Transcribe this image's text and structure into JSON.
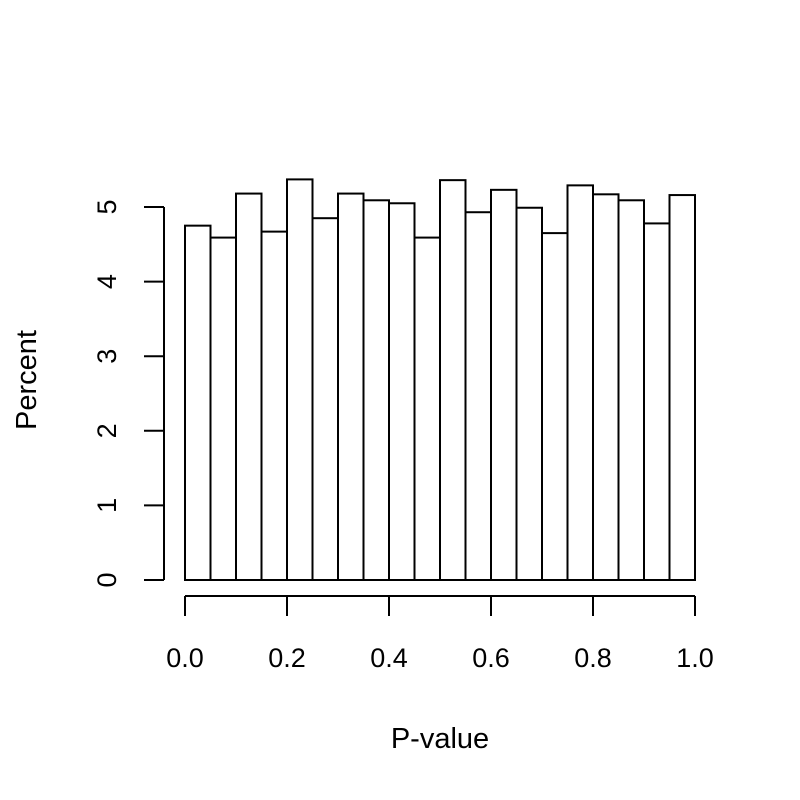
{
  "chart_data": {
    "type": "bar",
    "xlabel": "P-value",
    "ylabel": "Percent",
    "bins": [
      [
        0.0,
        0.05
      ],
      [
        0.05,
        0.1
      ],
      [
        0.1,
        0.15
      ],
      [
        0.15,
        0.2
      ],
      [
        0.2,
        0.25
      ],
      [
        0.25,
        0.3
      ],
      [
        0.3,
        0.35
      ],
      [
        0.35,
        0.4
      ],
      [
        0.4,
        0.45
      ],
      [
        0.45,
        0.5
      ],
      [
        0.5,
        0.55
      ],
      [
        0.55,
        0.6
      ],
      [
        0.6,
        0.65
      ],
      [
        0.65,
        0.7
      ],
      [
        0.7,
        0.75
      ],
      [
        0.75,
        0.8
      ],
      [
        0.8,
        0.85
      ],
      [
        0.85,
        0.9
      ],
      [
        0.9,
        0.95
      ],
      [
        0.95,
        1.0
      ]
    ],
    "values": [
      4.75,
      4.59,
      5.18,
      4.67,
      5.37,
      4.85,
      5.18,
      5.09,
      5.05,
      4.59,
      5.36,
      4.93,
      5.23,
      4.99,
      4.65,
      5.29,
      5.17,
      5.09,
      4.78,
      5.16
    ],
    "xlim": [
      0,
      1
    ],
    "ylim": [
      0,
      5.4
    ],
    "xticks": [
      0,
      0.2,
      0.4,
      0.6,
      0.8,
      1
    ],
    "xtick_labels": [
      "0.0",
      "0.2",
      "0.4",
      "0.6",
      "0.8",
      "1.0"
    ],
    "yticks": [
      0,
      1,
      2,
      3,
      4,
      5
    ],
    "ytick_labels": [
      "0",
      "1",
      "2",
      "3",
      "4",
      "5"
    ],
    "grid": false,
    "legend": "none"
  }
}
